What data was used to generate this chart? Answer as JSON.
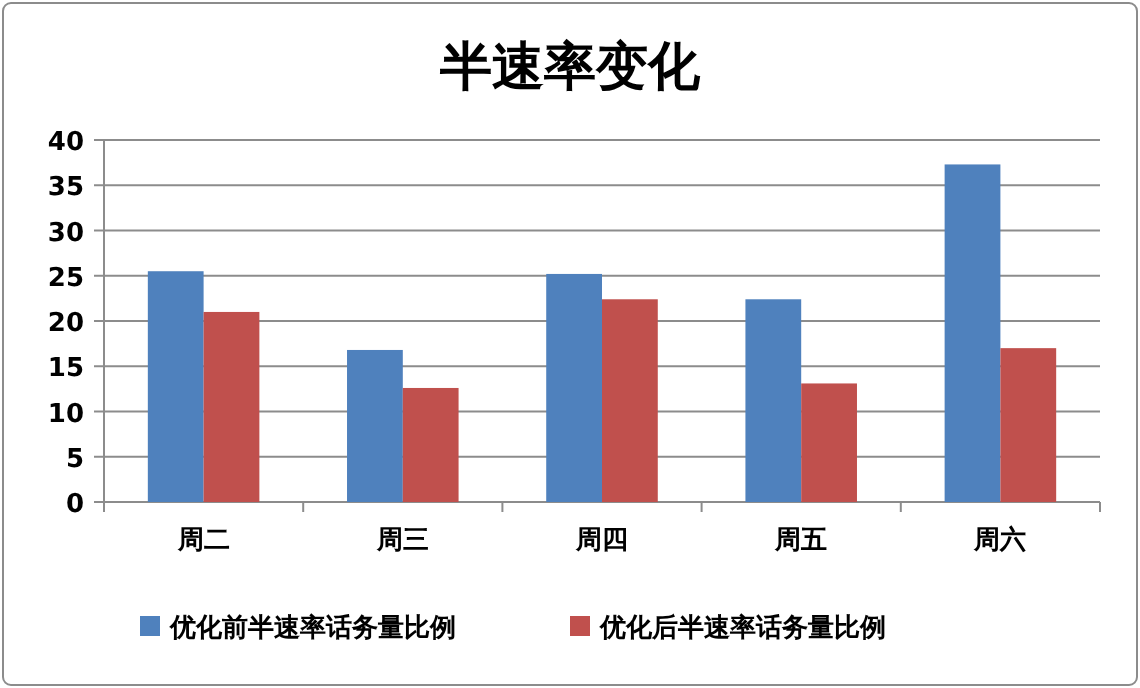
{
  "chart_data": {
    "type": "bar",
    "title": "半速率变化",
    "categories": [
      "周二",
      "周三",
      "周四",
      "周五",
      "周六"
    ],
    "series": [
      {
        "name": "优化前半速率话务量比例",
        "color": "#4f81bd",
        "values": [
          25.5,
          16.8,
          25.2,
          22.4,
          37.3
        ]
      },
      {
        "name": "优化后半速率话务量比例",
        "color": "#c0504d",
        "values": [
          21.0,
          12.6,
          22.4,
          13.1,
          17.0
        ]
      }
    ],
    "ylim": [
      0,
      40
    ],
    "yticks": [
      0,
      5,
      10,
      15,
      20,
      25,
      30,
      35,
      40
    ],
    "grid": "y",
    "legend": "bottom"
  }
}
